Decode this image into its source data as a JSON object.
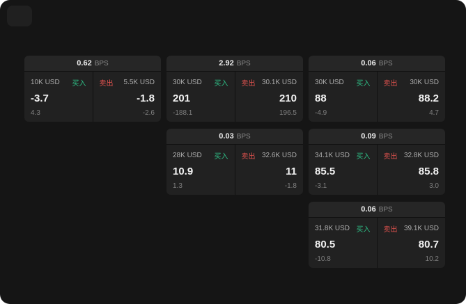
{
  "labels": {
    "bps": "BPS",
    "buy": "买入",
    "sell": "卖出"
  },
  "colors": {
    "background": "#151515",
    "card_header": "#262626",
    "panel": "#212121",
    "buy_green": "#2ebd85",
    "sell_red": "#e0524e"
  },
  "cards": [
    {
      "bps": "0.62",
      "buy": {
        "amount": "10K USD",
        "value": "-3.7",
        "delta": "4.3"
      },
      "sell": {
        "amount": "5.5K USD",
        "value": "-1.8",
        "delta": "-2.6"
      }
    },
    {
      "bps": "2.92",
      "buy": {
        "amount": "30K USD",
        "value": "201",
        "delta": "-188.1"
      },
      "sell": {
        "amount": "30.1K USD",
        "value": "210",
        "delta": "196.5"
      }
    },
    {
      "bps": "0.06",
      "buy": {
        "amount": "30K USD",
        "value": "88",
        "delta": "-4.9"
      },
      "sell": {
        "amount": "30K USD",
        "value": "88.2",
        "delta": "4.7"
      }
    },
    {
      "bps": "0.03",
      "buy": {
        "amount": "28K USD",
        "value": "10.9",
        "delta": "1.3"
      },
      "sell": {
        "amount": "32.6K USD",
        "value": "11",
        "delta": "-1.8"
      }
    },
    {
      "bps": "0.09",
      "buy": {
        "amount": "34.1K USD",
        "value": "85.5",
        "delta": "-3.1"
      },
      "sell": {
        "amount": "32.8K USD",
        "value": "85.8",
        "delta": "3.0"
      }
    },
    {
      "bps": "0.06",
      "buy": {
        "amount": "31.8K USD",
        "value": "80.5",
        "delta": "-10.8"
      },
      "sell": {
        "amount": "39.1K USD",
        "value": "80.7",
        "delta": "10.2"
      }
    }
  ]
}
